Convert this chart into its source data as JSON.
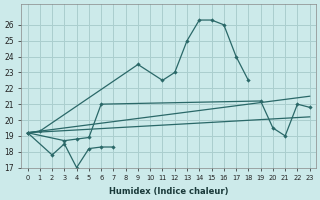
{
  "background_color": "#cceaea",
  "grid_color": "#aacece",
  "line_color": "#2a6868",
  "xlabel": "Humidex (Indice chaleur)",
  "ylim": [
    17,
    27
  ],
  "xlim": [
    -0.5,
    23.5
  ],
  "yticks": [
    17,
    18,
    19,
    20,
    21,
    22,
    23,
    24,
    25,
    26
  ],
  "xticks": [
    0,
    1,
    2,
    3,
    4,
    5,
    6,
    7,
    8,
    9,
    10,
    11,
    12,
    13,
    14,
    15,
    16,
    17,
    18,
    19,
    20,
    21,
    22,
    23
  ],
  "series": [
    {
      "x": [
        0,
        1,
        9,
        11,
        12,
        13,
        14,
        15,
        16,
        17,
        18
      ],
      "y": [
        19.2,
        19.3,
        23.5,
        22.5,
        23.0,
        25.0,
        26.3,
        26.3,
        26.0,
        24.0,
        22.5
      ],
      "marker": true
    },
    {
      "x": [
        0,
        2,
        3,
        4,
        5,
        6,
        7
      ],
      "y": [
        19.2,
        17.8,
        18.5,
        17.0,
        18.2,
        18.3,
        18.3
      ],
      "marker": true
    },
    {
      "x": [
        0,
        3,
        4,
        5,
        6,
        19,
        20,
        21,
        22,
        23
      ],
      "y": [
        19.2,
        18.7,
        18.8,
        18.9,
        21.0,
        21.2,
        19.5,
        19.0,
        21.0,
        20.8
      ],
      "marker": true
    },
    {
      "x": [
        0,
        23
      ],
      "y": [
        19.2,
        20.2
      ],
      "marker": false
    },
    {
      "x": [
        0,
        23
      ],
      "y": [
        19.2,
        21.5
      ],
      "marker": false
    }
  ]
}
